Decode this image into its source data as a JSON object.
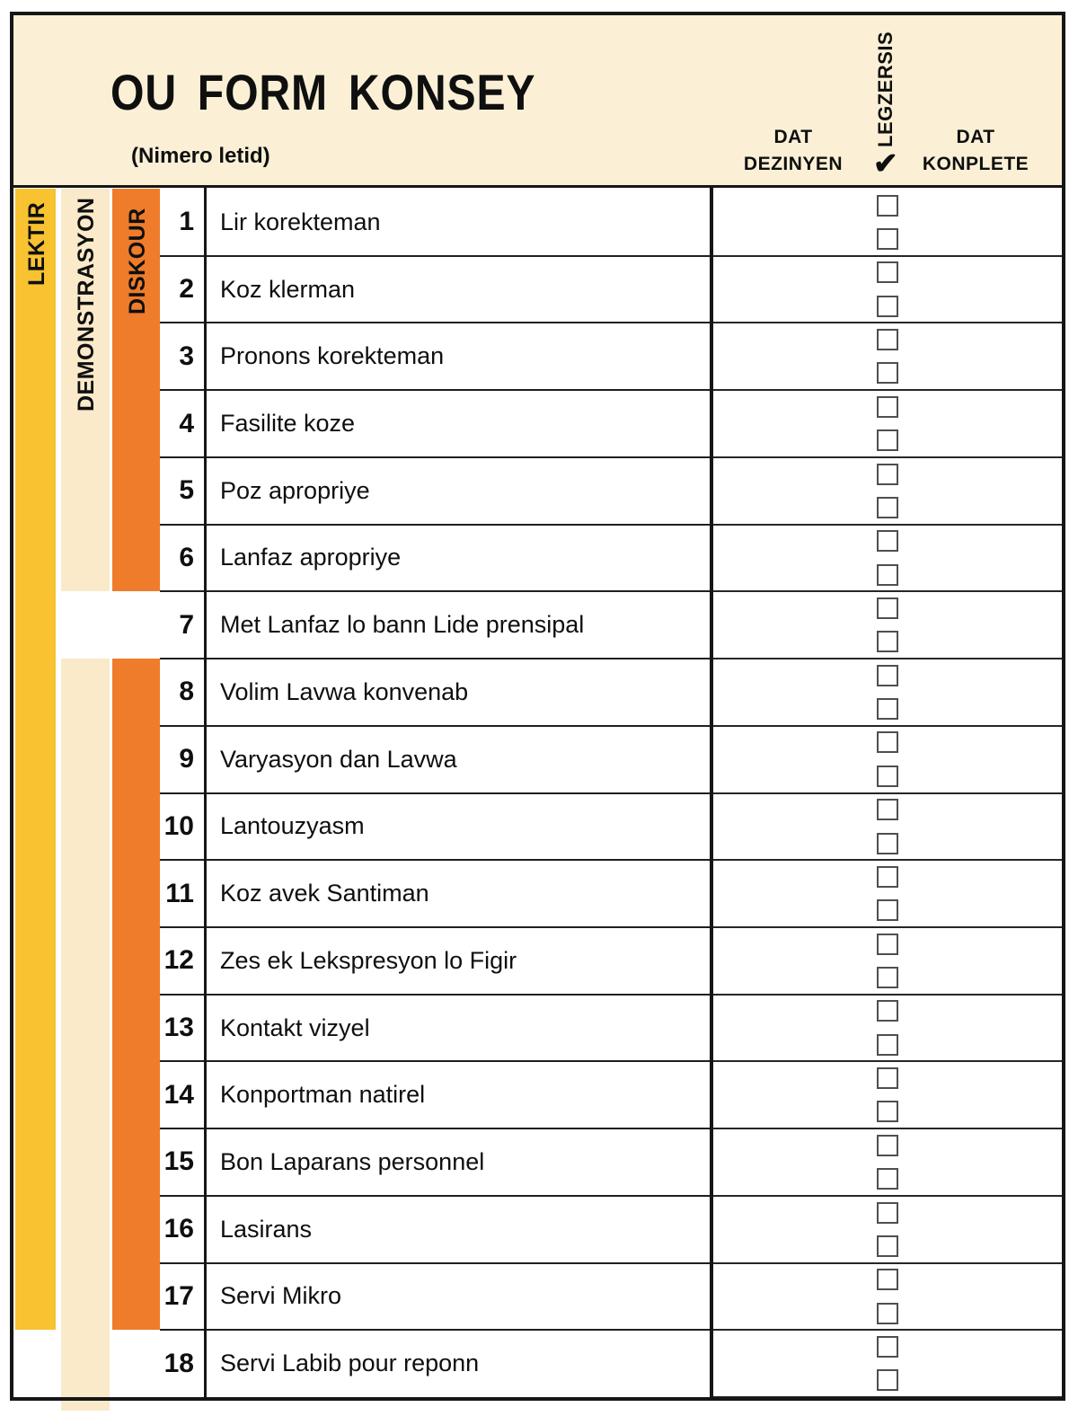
{
  "header": {
    "title": "OU FORM KONSEY",
    "subtitle": "(Nimero letid)",
    "col_dat_dezinyen": [
      "DAT",
      "DEZINYEN"
    ],
    "col_legzersis": "LEGZERSIS",
    "check_symbol": "✔",
    "col_dat_konplete": [
      "DAT",
      "KONPLETE"
    ]
  },
  "categories": [
    {
      "id": "lektir",
      "label": "LEKTIR",
      "color": "#F8C230",
      "row_spans": [
        [
          1,
          17
        ]
      ],
      "extends_below": false
    },
    {
      "id": "demonstrasyon",
      "label": "DEMONSTRASYON",
      "color": "#FAEACA",
      "row_spans": [
        [
          1,
          6
        ],
        [
          8,
          18
        ]
      ],
      "extends_below": true
    },
    {
      "id": "diskour",
      "label": "DISKOUR",
      "color": "#EE7C2B",
      "row_spans": [
        [
          1,
          6
        ],
        [
          8,
          17
        ]
      ],
      "extends_below": false
    }
  ],
  "items": [
    {
      "num": "1",
      "label": "Lir korekteman"
    },
    {
      "num": "2",
      "label": "Koz klerman"
    },
    {
      "num": "3",
      "label": "Pronons korekteman"
    },
    {
      "num": "4",
      "label": "Fasilite koze"
    },
    {
      "num": "5",
      "label": "Poz apropriye"
    },
    {
      "num": "6",
      "label": "Lanfaz apropriye"
    },
    {
      "num": "7",
      "label": "Met Lanfaz lo bann Lide prensipal"
    },
    {
      "num": "8",
      "label": "Volim Lavwa konvenab"
    },
    {
      "num": "9",
      "label": "Varyasyon dan Lavwa"
    },
    {
      "num": "10",
      "label": "Lantouzyasm"
    },
    {
      "num": "11",
      "label": "Koz avek Santiman"
    },
    {
      "num": "12",
      "label": "Zes ek Lekspresyon lo Figir"
    },
    {
      "num": "13",
      "label": "Kontakt vizyel"
    },
    {
      "num": "14",
      "label": "Konportman natirel"
    },
    {
      "num": "15",
      "label": "Bon Laparans personnel"
    },
    {
      "num": "16",
      "label": "Lasirans"
    },
    {
      "num": "17",
      "label": "Servi Mikro"
    },
    {
      "num": "18",
      "label": "Servi Labib pour reponn"
    }
  ],
  "lines_per_item": 2,
  "checkbox_state": "unchecked",
  "colors": {
    "header_background": "#FBF0D6",
    "lektir_yellow": "#F8C230",
    "demonstrasyon_cream": "#FAEACA",
    "diskour_orange": "#EE7C2B",
    "border_black": "#161616"
  }
}
